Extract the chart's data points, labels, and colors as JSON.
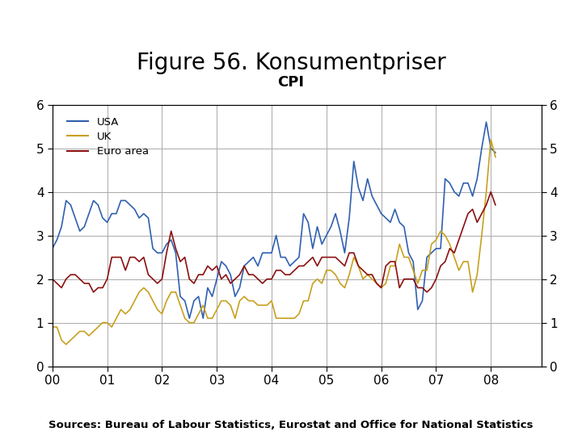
{
  "title": "Figure 56. Konsumentpriser",
  "subtitle": "CPI",
  "legend_labels": [
    "USA",
    "UK",
    "Euro area"
  ],
  "line_colors": {
    "USA": "#3060B0",
    "UK": "#C8A020",
    "Euro area": "#8B1010"
  },
  "ylim": [
    0,
    6
  ],
  "yticks": [
    0,
    1,
    2,
    3,
    4,
    5,
    6
  ],
  "xlabel_ticks": [
    "00",
    "01",
    "02",
    "03",
    "04",
    "05",
    "06",
    "07",
    "08"
  ],
  "background_color": "#FFFFFF",
  "footer_bar_color": "#1F4E79",
  "footer_text": "Sources: Bureau of Labour Statistics, Eurostat and Office for National Statistics",
  "title_fontsize": 20,
  "subtitle_fontsize": 13,
  "USA": [
    2.7,
    2.9,
    3.2,
    3.8,
    3.7,
    3.4,
    3.1,
    3.2,
    3.5,
    3.8,
    3.7,
    3.4,
    3.3,
    3.5,
    3.5,
    3.8,
    3.8,
    3.7,
    3.6,
    3.4,
    3.5,
    3.4,
    2.7,
    2.6,
    2.6,
    2.8,
    2.9,
    2.6,
    1.6,
    1.5,
    1.1,
    1.5,
    1.6,
    1.1,
    1.8,
    1.6,
    2.0,
    2.4,
    2.3,
    2.1,
    1.6,
    1.8,
    2.3,
    2.4,
    2.5,
    2.3,
    2.6,
    2.6,
    2.6,
    3.0,
    2.5,
    2.5,
    2.3,
    2.4,
    2.5,
    3.5,
    3.3,
    2.7,
    3.2,
    2.8,
    3.0,
    3.2,
    3.5,
    3.1,
    2.6,
    3.4,
    4.7,
    4.1,
    3.8,
    4.3,
    3.9,
    3.7,
    3.5,
    3.4,
    3.3,
    3.6,
    3.3,
    3.2,
    2.6,
    2.4,
    1.3,
    1.5,
    2.5,
    2.6,
    2.7,
    2.7,
    4.3,
    4.2,
    4.0,
    3.9,
    4.2,
    4.2,
    3.9,
    4.3,
    5.0,
    5.6,
    5.0,
    4.9
  ],
  "UK": [
    0.9,
    0.9,
    0.6,
    0.5,
    0.6,
    0.7,
    0.8,
    0.8,
    0.7,
    0.8,
    0.9,
    1.0,
    1.0,
    0.9,
    1.1,
    1.3,
    1.2,
    1.3,
    1.5,
    1.7,
    1.8,
    1.7,
    1.5,
    1.3,
    1.2,
    1.5,
    1.7,
    1.7,
    1.4,
    1.1,
    1.0,
    1.0,
    1.2,
    1.4,
    1.1,
    1.1,
    1.3,
    1.5,
    1.5,
    1.4,
    1.1,
    1.5,
    1.6,
    1.5,
    1.5,
    1.4,
    1.4,
    1.4,
    1.5,
    1.1,
    1.1,
    1.1,
    1.1,
    1.1,
    1.2,
    1.5,
    1.5,
    1.9,
    2.0,
    1.9,
    2.2,
    2.2,
    2.1,
    1.9,
    1.8,
    2.1,
    2.5,
    2.3,
    2.0,
    2.1,
    2.0,
    1.9,
    1.8,
    1.9,
    2.3,
    2.3,
    2.8,
    2.5,
    2.5,
    2.2,
    1.9,
    2.2,
    2.2,
    2.8,
    2.9,
    3.1,
    3.0,
    2.8,
    2.5,
    2.2,
    2.4,
    2.4,
    1.7,
    2.1,
    3.0,
    4.0,
    5.2,
    4.8
  ],
  "Euro": [
    2.0,
    1.9,
    1.8,
    2.0,
    2.1,
    2.1,
    2.0,
    1.9,
    1.9,
    1.7,
    1.8,
    1.8,
    2.0,
    2.5,
    2.5,
    2.5,
    2.2,
    2.5,
    2.5,
    2.4,
    2.5,
    2.1,
    2.0,
    1.9,
    2.0,
    2.6,
    3.1,
    2.7,
    2.4,
    2.5,
    2.0,
    1.9,
    2.1,
    2.1,
    2.3,
    2.2,
    2.3,
    2.0,
    2.1,
    1.9,
    2.0,
    2.1,
    2.3,
    2.1,
    2.1,
    2.0,
    1.9,
    2.0,
    2.0,
    2.2,
    2.2,
    2.1,
    2.1,
    2.2,
    2.3,
    2.3,
    2.4,
    2.5,
    2.3,
    2.5,
    2.5,
    2.5,
    2.5,
    2.4,
    2.3,
    2.6,
    2.6,
    2.3,
    2.2,
    2.1,
    2.1,
    1.9,
    1.8,
    2.3,
    2.4,
    2.4,
    1.8,
    2.0,
    2.0,
    2.0,
    1.8,
    1.8,
    1.7,
    1.8,
    2.0,
    2.3,
    2.4,
    2.7,
    2.6,
    2.9,
    3.2,
    3.5,
    3.6,
    3.3,
    3.5,
    3.7,
    4.0,
    3.7
  ]
}
